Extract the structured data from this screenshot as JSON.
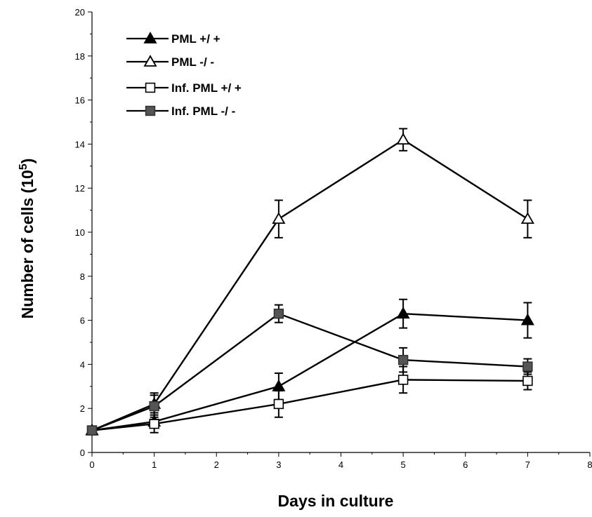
{
  "chart_data": {
    "type": "line",
    "title": "",
    "xlabel": "Days in culture",
    "ylabel": "Number of cells (10",
    "ylabel_superscript": "5",
    "ylabel_close": ")",
    "xlim": [
      0,
      8
    ],
    "ylim": [
      0,
      20
    ],
    "x_ticks": [
      "0",
      "1",
      "2",
      "3",
      "4",
      "5",
      "6",
      "7",
      "8"
    ],
    "y_ticks": [
      "0",
      "2",
      "4",
      "6",
      "8",
      "10",
      "12",
      "14",
      "16",
      "18",
      "20"
    ],
    "grid": false,
    "legend_position": "top-left",
    "series": [
      {
        "name": "PML +/ +",
        "marker": "filled-triangle",
        "x": [
          0,
          1,
          3,
          5,
          7
        ],
        "y": [
          1.0,
          1.4,
          3.0,
          6.3,
          6.0
        ],
        "err": [
          0.1,
          0.2,
          0.6,
          0.65,
          0.8
        ]
      },
      {
        "name": "PML -/ -",
        "marker": "open-triangle",
        "x": [
          0,
          1,
          3,
          5,
          7
        ],
        "y": [
          1.0,
          2.2,
          10.6,
          14.2,
          10.6
        ],
        "err": [
          0.1,
          0.4,
          0.85,
          0.5,
          0.85
        ]
      },
      {
        "name": "Inf. PML +/ +",
        "marker": "open-square",
        "x": [
          0,
          1,
          3,
          5,
          7
        ],
        "y": [
          1.0,
          1.3,
          2.2,
          3.3,
          3.25
        ],
        "err": [
          0.1,
          0.4,
          0.6,
          0.6,
          0.4
        ]
      },
      {
        "name": "Inf. PML -/ -",
        "marker": "filled-square",
        "x": [
          0,
          1,
          3,
          5,
          7
        ],
        "y": [
          1.0,
          2.1,
          6.3,
          4.2,
          3.9
        ],
        "err": [
          0.1,
          0.6,
          0.4,
          0.55,
          0.35
        ]
      }
    ]
  }
}
